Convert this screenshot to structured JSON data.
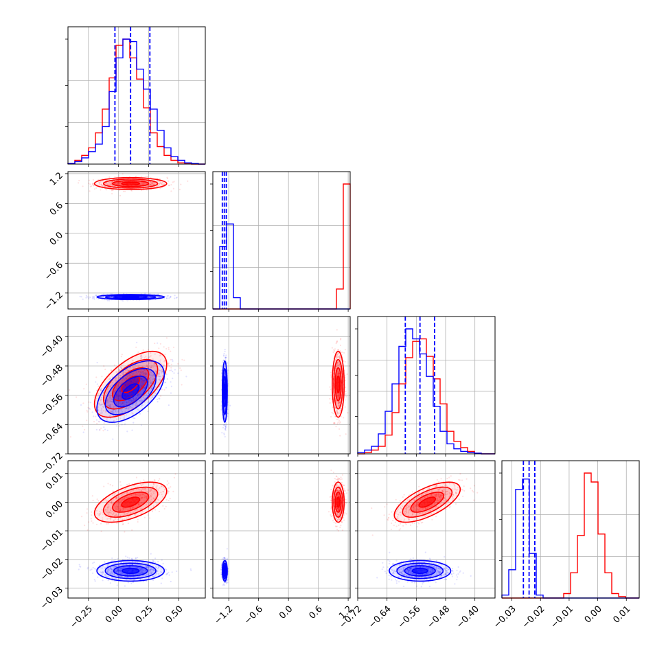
{
  "chart_data": {
    "type": "corner",
    "title": "",
    "grid": true,
    "colors": {
      "red": "#ff0000",
      "blue": "#0000ff"
    },
    "series": [
      {
        "color": "#ff0000",
        "means": [
          0.1,
          1.0,
          -0.53,
          0.0
        ],
        "stds": [
          0.15,
          0.06,
          0.045,
          0.0035
        ],
        "correlations": {
          "2-0": 0.6,
          "3-0": 0.55,
          "3-2": 0.65
        }
      },
      {
        "color": "#0000ff",
        "means": [
          0.1,
          -1.28,
          -0.55,
          -0.024
        ],
        "stds": [
          0.14,
          0.025,
          0.042,
          0.0018
        ],
        "correlations": {
          "2-0": 0.55
        }
      }
    ],
    "quantile_lines": {
      "color": "#0000ff",
      "style": "dashed",
      "dims": [
        [
          -0.03,
          0.1,
          0.26
        ],
        [
          -1.33,
          -1.29,
          -1.25
        ],
        [
          -0.59,
          -0.55,
          -0.51
        ],
        [
          -0.026,
          -0.024,
          -0.022
        ]
      ]
    },
    "dims": [
      {
        "range": [
          -0.42,
          0.72
        ],
        "ticks": [
          -0.25,
          0.0,
          0.25,
          0.5
        ],
        "tick_labels": [
          "−0.25",
          "0.00",
          "0.25",
          "0.50"
        ]
      },
      {
        "range": [
          -1.52,
          1.24
        ],
        "ticks": [
          -1.2,
          -0.6,
          0.0,
          0.6,
          1.2
        ],
        "tick_labels": [
          "−1.2",
          "−0.6",
          "0.0",
          "0.6",
          "1.2"
        ]
      },
      {
        "range": [
          -0.72,
          -0.345
        ],
        "ticks": [
          -0.72,
          -0.64,
          -0.56,
          -0.48,
          -0.4
        ],
        "tick_labels": [
          "−0.72",
          "−0.64",
          "−0.56",
          "−0.48",
          "−0.40"
        ]
      },
      {
        "range": [
          -0.0335,
          0.0145
        ],
        "ticks": [
          -0.03,
          -0.02,
          -0.01,
          0.0,
          0.01
        ],
        "y_tick_labels": [
          "−0.03",
          "−0.02",
          "−0.01",
          "0.00",
          "0.01"
        ],
        "x_tick_labels": [
          "−0.03",
          "−0.02",
          "−0.01",
          "0.00",
          "0.01"
        ]
      }
    ],
    "histograms": [
      {
        "bins": [
          -0.42,
          0.72,
          20
        ],
        "red": [
          0.005,
          0.03,
          0.07,
          0.13,
          0.25,
          0.44,
          0.69,
          0.95,
          1.0,
          0.85,
          0.68,
          0.45,
          0.25,
          0.14,
          0.07,
          0.03,
          0.01,
          0.005,
          0.0,
          0.0
        ],
        "blue": [
          0.005,
          0.02,
          0.05,
          0.1,
          0.16,
          0.3,
          0.58,
          0.85,
          1.0,
          0.98,
          0.76,
          0.6,
          0.44,
          0.27,
          0.13,
          0.06,
          0.03,
          0.01,
          0.005,
          0.0
        ]
      },
      {
        "bins": [
          -1.52,
          1.24,
          20
        ],
        "red": [
          0,
          0,
          0,
          0,
          0,
          0,
          0,
          0,
          0,
          0,
          0,
          0,
          0,
          0,
          0,
          0,
          0,
          0,
          0.16,
          1.0
        ],
        "blue": [
          0,
          0.5,
          0.68,
          0.09,
          0,
          0,
          0,
          0,
          0,
          0,
          0,
          0,
          0,
          0,
          0,
          0,
          0,
          0,
          0,
          0
        ]
      },
      {
        "bins": [
          -0.72,
          -0.345,
          20
        ],
        "red": [
          0.0,
          0.01,
          0.03,
          0.06,
          0.15,
          0.33,
          0.56,
          0.77,
          0.9,
          0.92,
          0.78,
          0.6,
          0.4,
          0.18,
          0.1,
          0.05,
          0.02,
          0.005,
          0.0,
          0.0
        ],
        "blue": [
          0.01,
          0.03,
          0.06,
          0.16,
          0.34,
          0.56,
          0.86,
          1.0,
          0.92,
          0.8,
          0.62,
          0.38,
          0.18,
          0.08,
          0.04,
          0.02,
          0.01,
          0.005,
          0.0,
          0.0
        ],
        "grid_frac": [
          0.24,
          0.5,
          0.75
        ]
      },
      {
        "bins": [
          -0.0335,
          0.0145,
          20
        ],
        "red": [
          0,
          0,
          0,
          0,
          0,
          0,
          0,
          0,
          0,
          0.03,
          0.17,
          0.42,
          0.84,
          0.78,
          0.43,
          0.17,
          0.03,
          0.01,
          0,
          0
        ],
        "blue": [
          0.02,
          0.19,
          0.73,
          0.8,
          0.3,
          0.02,
          0,
          0,
          0,
          0,
          0,
          0,
          0,
          0,
          0,
          0,
          0,
          0,
          0,
          0
        ]
      }
    ]
  }
}
